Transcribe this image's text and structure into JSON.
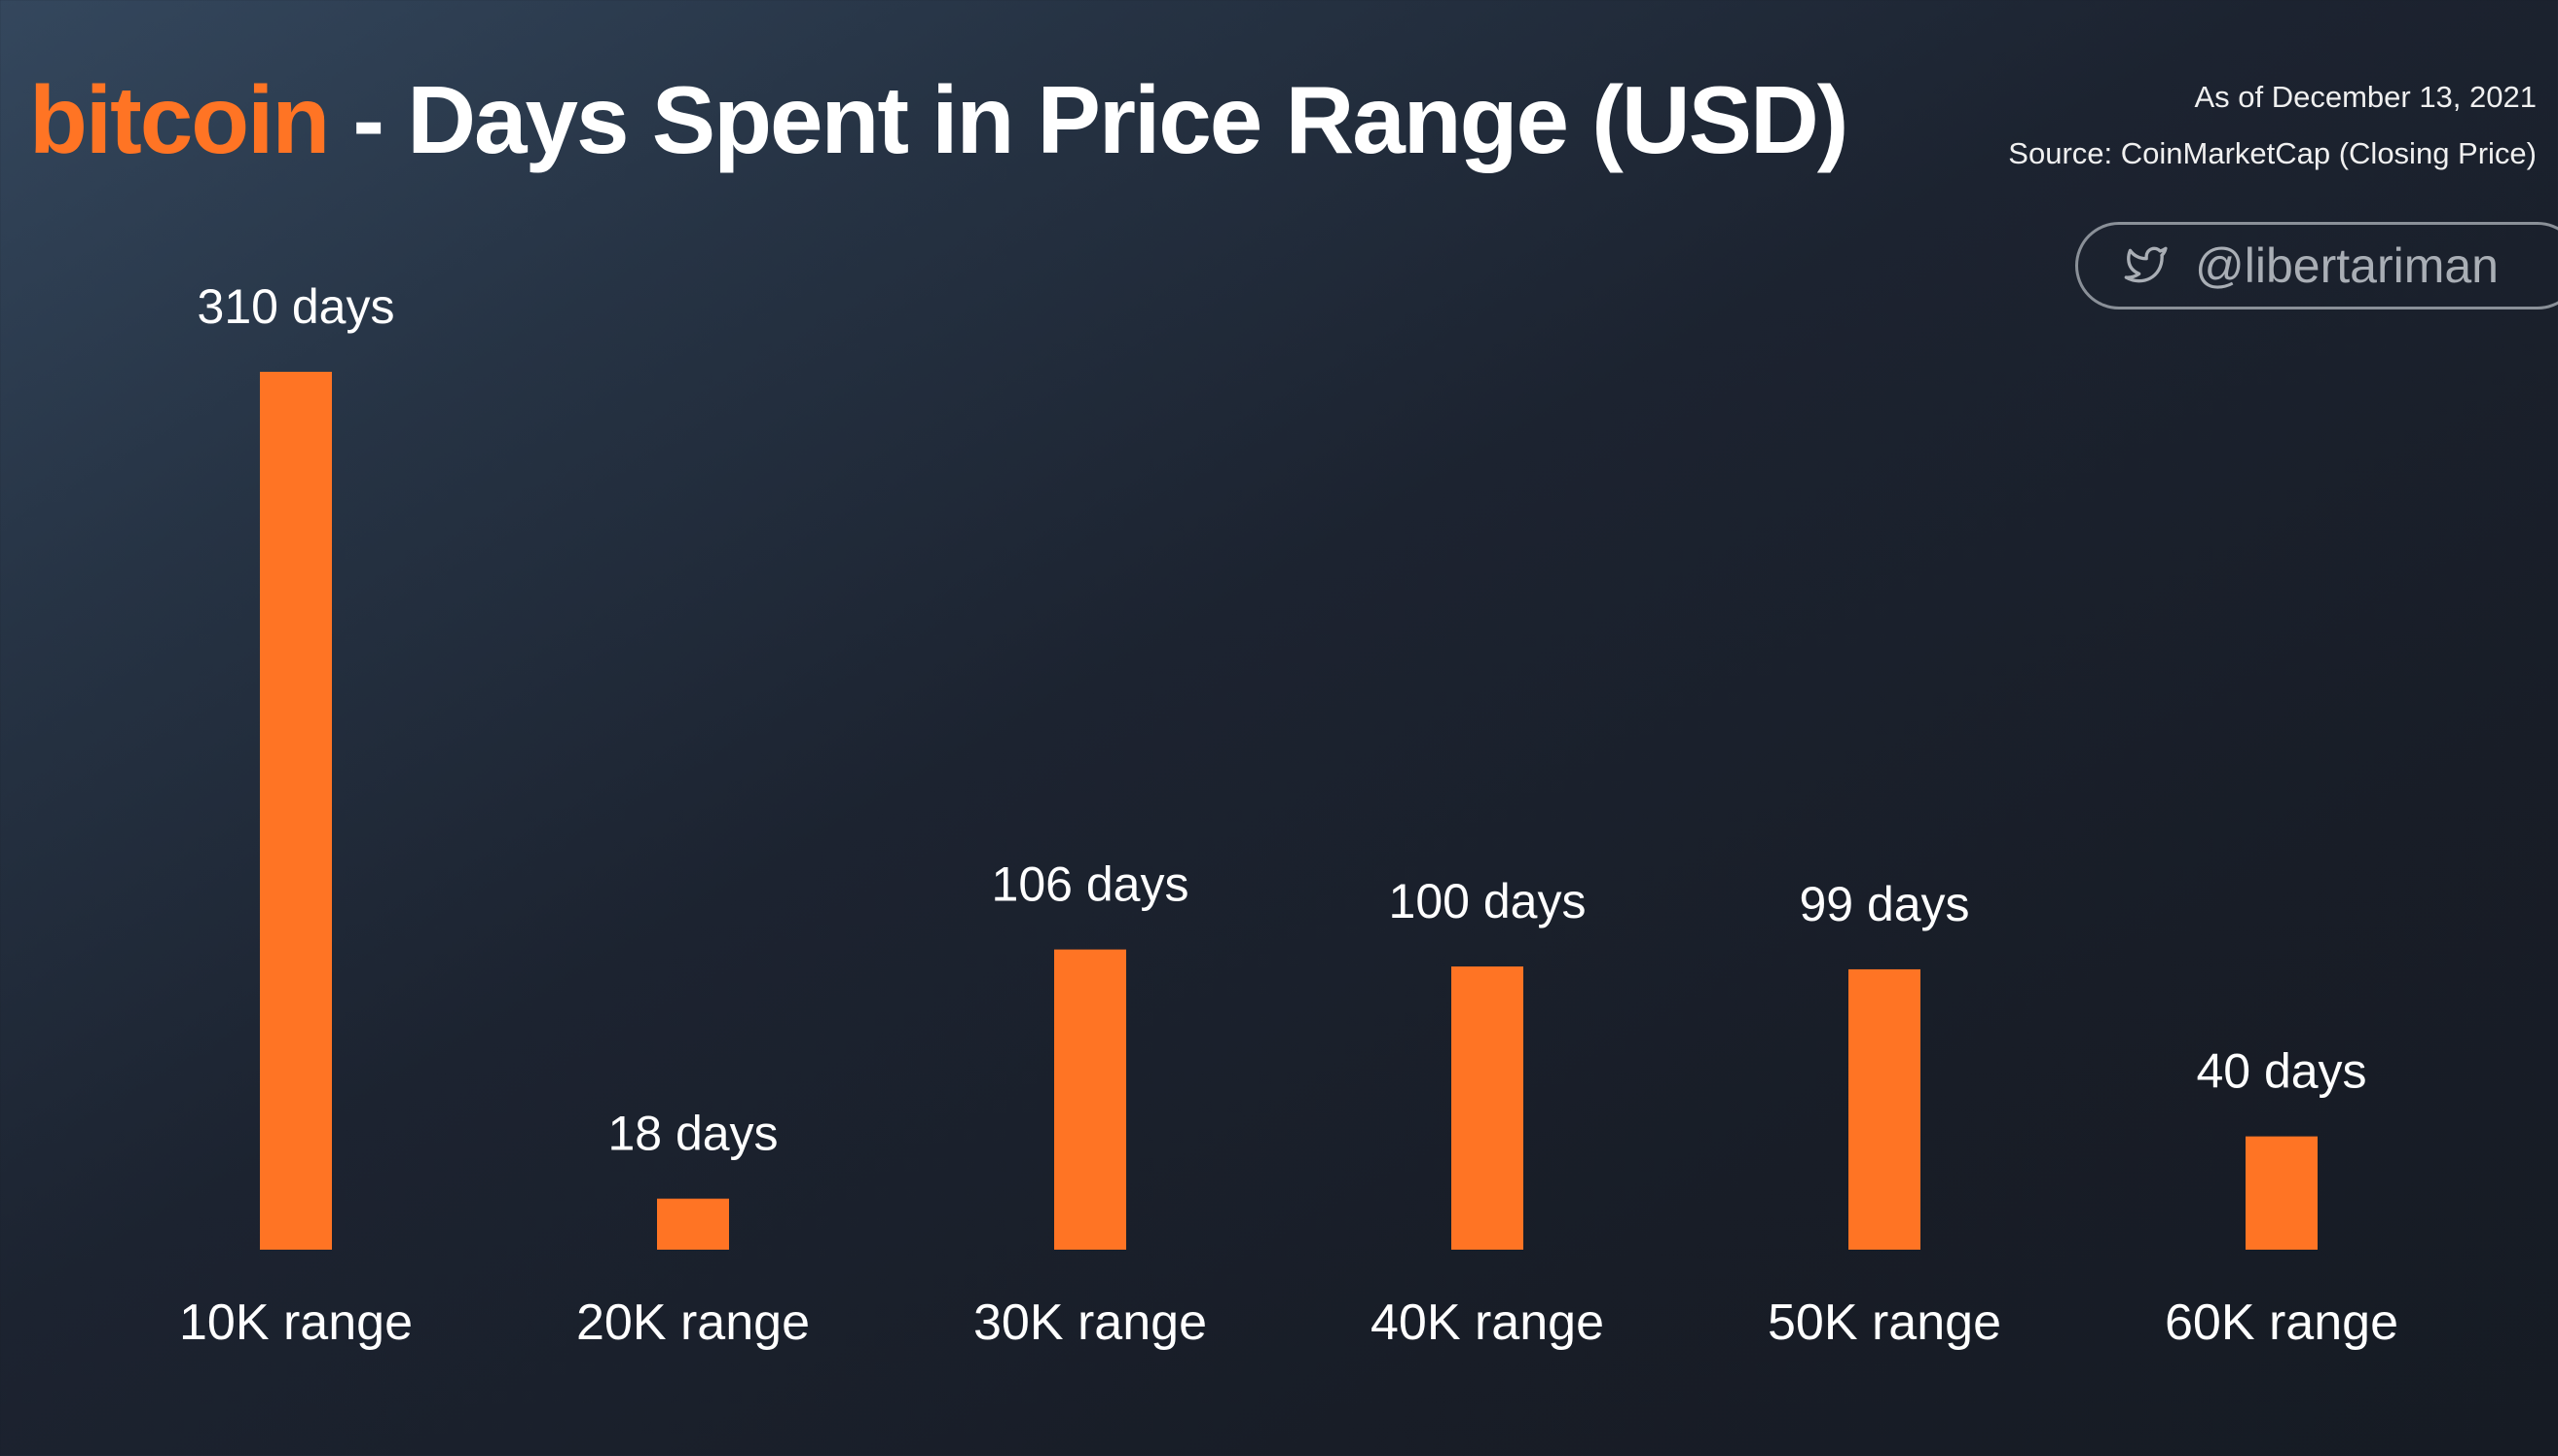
{
  "header": {
    "title_brand": "bitcoin",
    "title_rest": " - Days Spent in Price Range (USD)",
    "as_of": "As of December 13, 2021",
    "source": "Source: CoinMarketCap (Closing Price)",
    "handle": "@libertariman",
    "handle_icon": "twitter-bird-icon"
  },
  "colors": {
    "accent": "#ff7424",
    "text": "#ffffff"
  },
  "chart_data": {
    "type": "bar",
    "title": "bitcoin - Days Spent in Price Range (USD)",
    "categories": [
      "10K range",
      "20K range",
      "30K range",
      "40K range",
      "50K range",
      "60K range"
    ],
    "values": [
      310,
      18,
      106,
      100,
      99,
      40
    ],
    "value_labels": [
      "310 days",
      "18 days",
      "106 days",
      "100 days",
      "99 days",
      "40 days"
    ],
    "xlabel": "",
    "ylabel": "",
    "ylim": [
      0,
      310
    ],
    "grid": false,
    "legend": "none",
    "bar_color": "#ff7424"
  }
}
